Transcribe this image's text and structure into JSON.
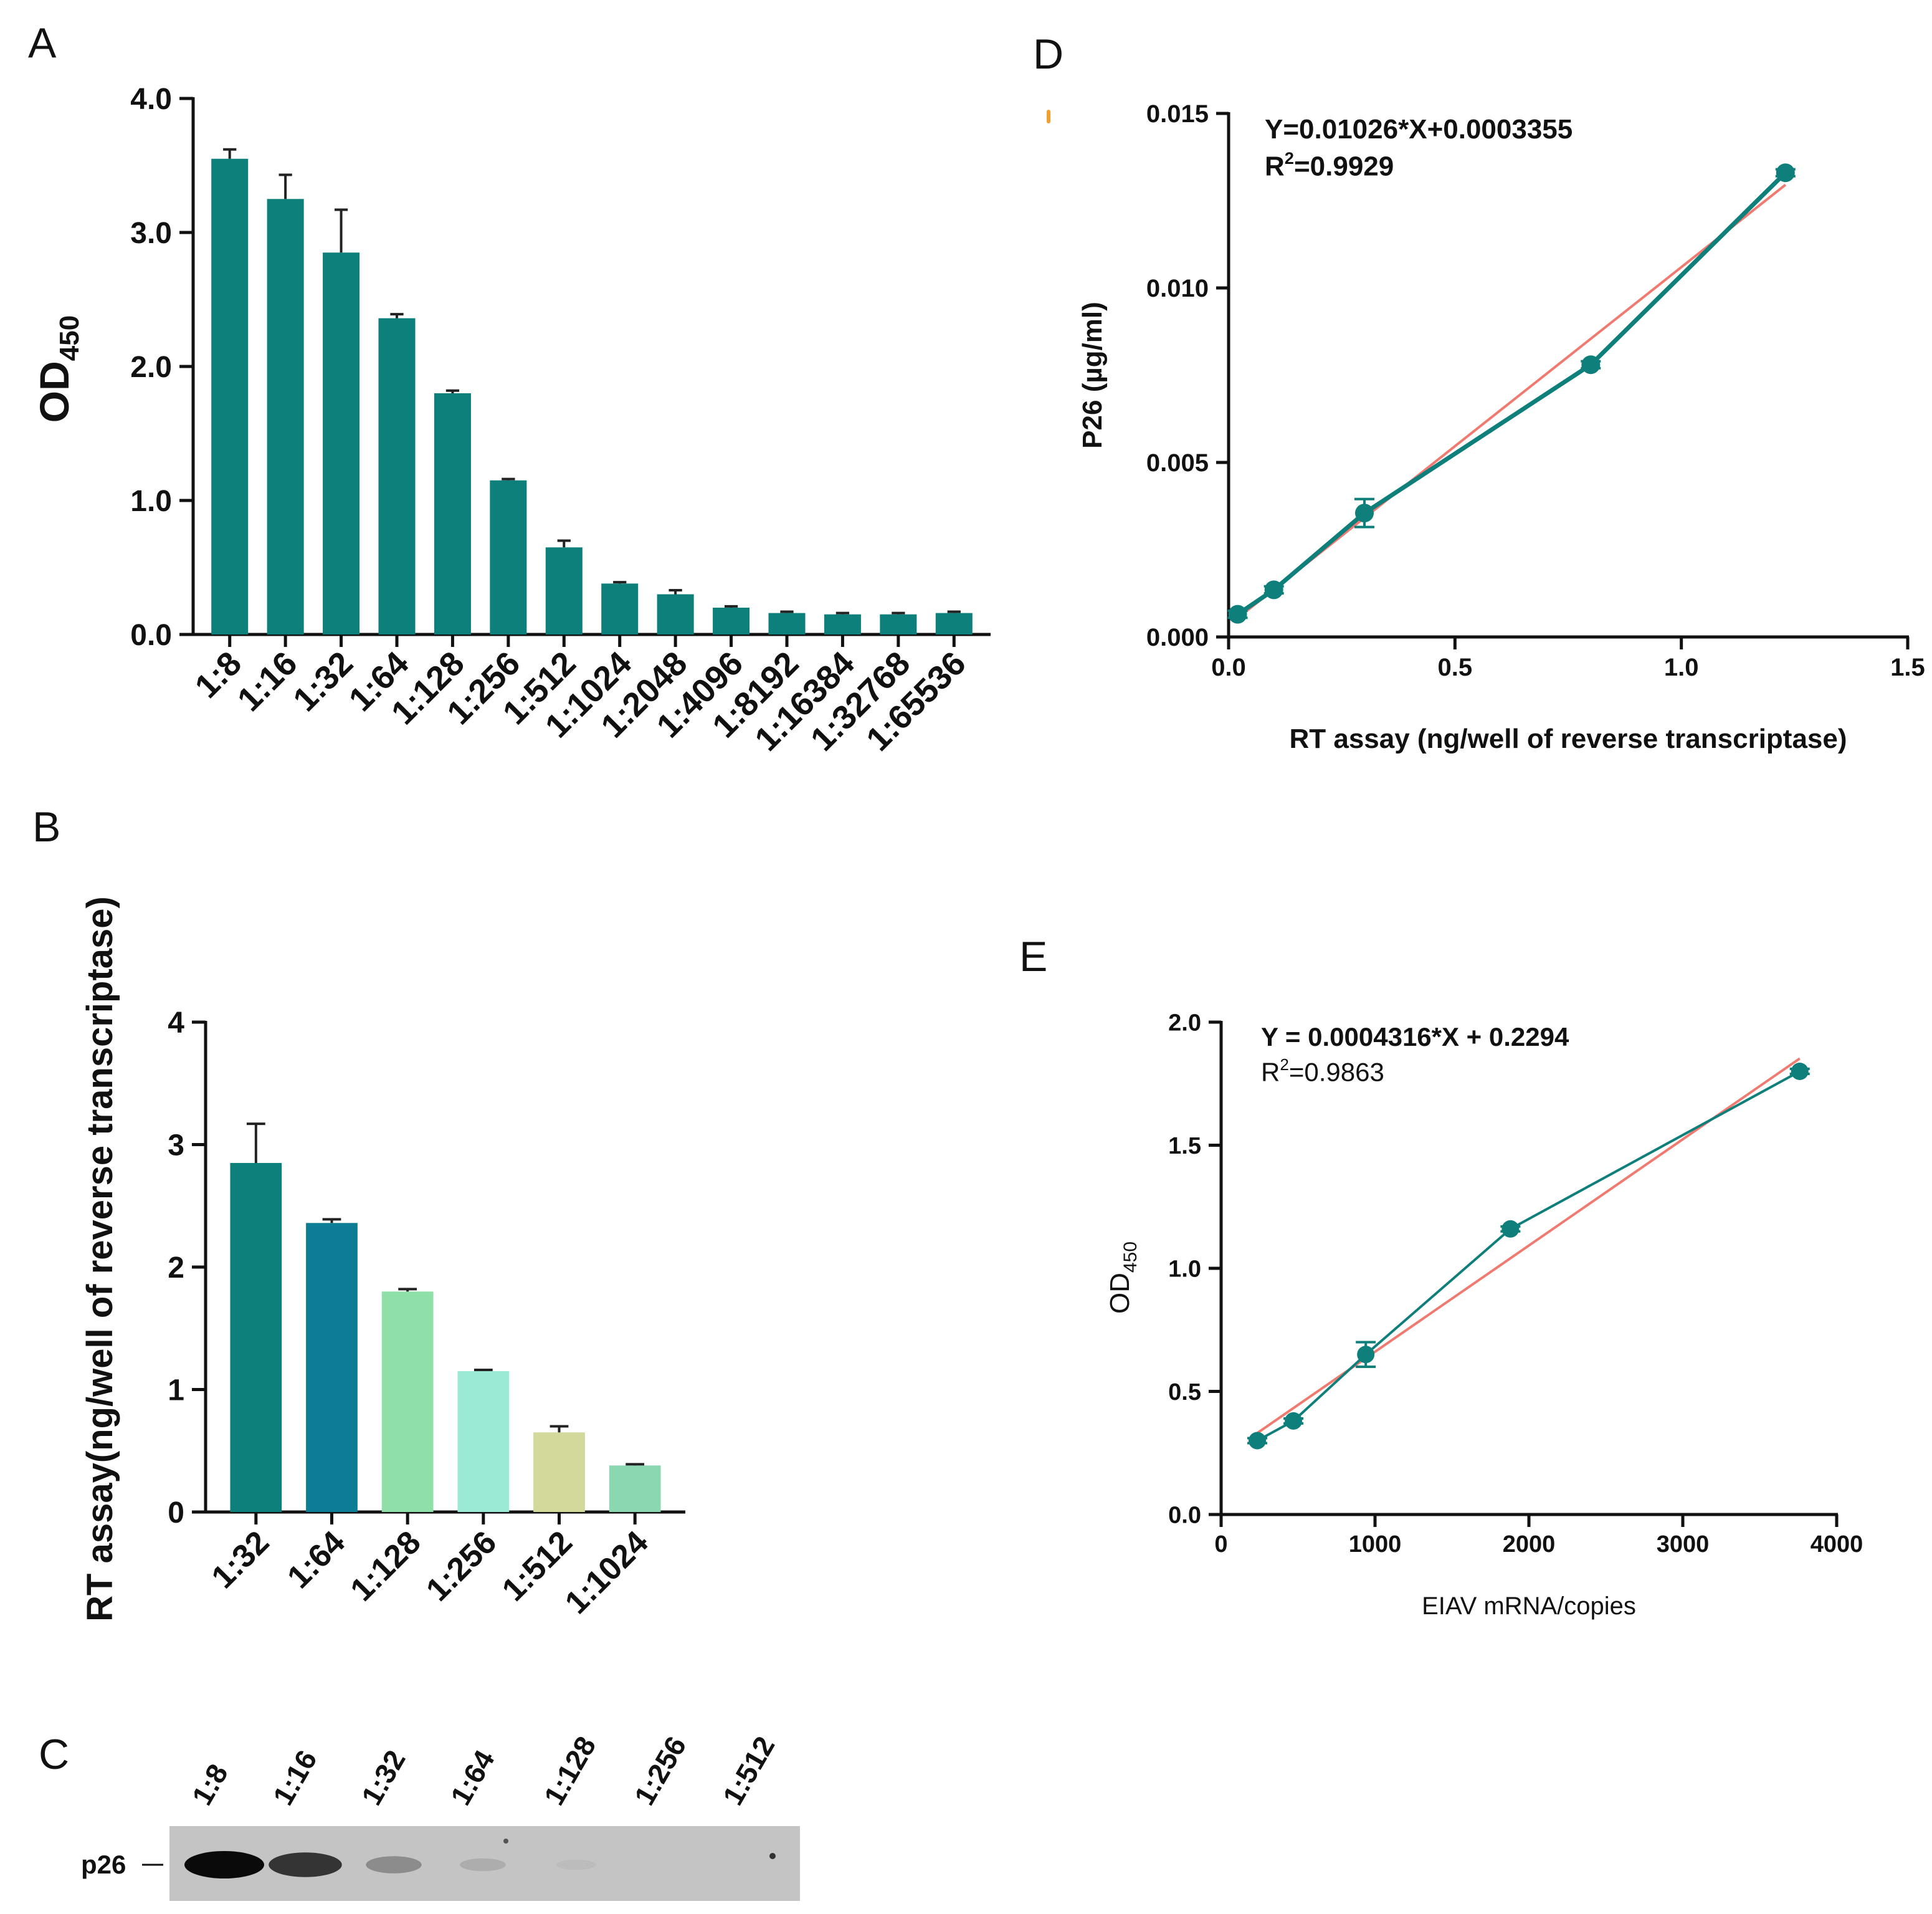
{
  "colors": {
    "teal": "#0d807b",
    "teal_dark": "#0e7f7a",
    "blue": "#0d7d96",
    "light_green": "#8fdfa8",
    "mint": "#9aead6",
    "khaki": "#d3d89b",
    "sea_green": "#8ad7b2",
    "fit_line": "#f07a70",
    "axis": "#111111",
    "accent_orange": "#f0a030"
  },
  "chart_data": [
    {
      "panel": "A",
      "type": "bar",
      "ylabel_main": "OD",
      "ylabel_sub": "450",
      "ylim": [
        0,
        4.0
      ],
      "yticks": [
        "0.0",
        "1.0",
        "2.0",
        "3.0",
        "4.0"
      ],
      "categories": [
        "1:8",
        "1:16",
        "1:32",
        "1:64",
        "1:128",
        "1:256",
        "1:512",
        "1:1024",
        "1:2048",
        "1:4096",
        "1:8192",
        "1:16384",
        "1:32768",
        "1:65536"
      ],
      "values": [
        3.55,
        3.25,
        2.85,
        2.36,
        1.8,
        1.15,
        0.65,
        0.38,
        0.3,
        0.2,
        0.16,
        0.15,
        0.15,
        0.16
      ],
      "errors": [
        0.07,
        0.18,
        0.32,
        0.03,
        0.02,
        0.01,
        0.05,
        0.01,
        0.03,
        0.01,
        0.01,
        0.01,
        0.01,
        0.01
      ]
    },
    {
      "panel": "B",
      "type": "bar",
      "ylabel": "RT assay(ng/well of reverse transcriptase)",
      "ylim": [
        0,
        4
      ],
      "yticks": [
        "0",
        "1",
        "2",
        "3",
        "4"
      ],
      "categories": [
        "1:32",
        "1:64",
        "1:128",
        "1:256",
        "1:512",
        "1:1024"
      ],
      "values": [
        2.85,
        2.36,
        1.8,
        1.15,
        0.65,
        0.38
      ],
      "errors": [
        0.32,
        0.03,
        0.02,
        0.01,
        0.05,
        0.01
      ],
      "bar_colors": [
        "#0d807b",
        "#0d7d96",
        "#8fdfa8",
        "#9aead6",
        "#d3d89b",
        "#8ad7b2"
      ]
    },
    {
      "panel": "D",
      "type": "scatter",
      "equation": "Y=0.01026*X+0.0003355",
      "r2_label": "R",
      "r2_sup": "2",
      "r2_value": "=0.9929",
      "xlabel": "RT assay (ng/well of reverse transcriptase)",
      "ylabel": "P26 (µg/ml)",
      "xlim": [
        0,
        1.5
      ],
      "ylim": [
        0,
        0.015
      ],
      "xticks": [
        "0.0",
        "0.5",
        "1.0",
        "1.5"
      ],
      "yticks": [
        "0.000",
        "0.005",
        "0.010",
        "0.015"
      ],
      "x": [
        0.02,
        0.1,
        0.3,
        0.8,
        1.23
      ],
      "y": [
        0.00065,
        0.00135,
        0.00355,
        0.0078,
        0.0133
      ],
      "errors": [
        0.0001,
        0.0001,
        0.0004,
        0.0001,
        0.0001
      ],
      "fit": {
        "slope": 0.01026,
        "intercept": 0.0003355,
        "x_range": [
          0.02,
          1.23
        ]
      }
    },
    {
      "panel": "E",
      "type": "scatter",
      "equation": "Y = 0.0004316*X + 0.2294",
      "r2_label": "R",
      "r2_sup": "2",
      "r2_value": "=0.9863",
      "xlabel": "EIAV mRNA/copies",
      "ylabel_main": "OD",
      "ylabel_sub": "450",
      "xlim": [
        0,
        4000
      ],
      "ylim": [
        0,
        2.0
      ],
      "xticks": [
        "0",
        "1000",
        "2000",
        "3000",
        "4000"
      ],
      "yticks": [
        "0.0",
        "0.5",
        "1.0",
        "1.5",
        "2.0"
      ],
      "x": [
        235,
        470,
        940,
        1880,
        3760
      ],
      "y": [
        0.3,
        0.38,
        0.65,
        1.16,
        1.8
      ],
      "errors": [
        0.01,
        0.01,
        0.05,
        0.01,
        0.01
      ],
      "fit": {
        "slope": 0.0004316,
        "intercept": 0.2294,
        "x_range": [
          235,
          3760
        ]
      }
    }
  ],
  "blot": {
    "panel": "C",
    "lanes": [
      "1:8",
      "1:16",
      "1:32",
      "1:64",
      "1:128",
      "1:256",
      "1:512"
    ],
    "band_label": "p26",
    "band_intensity": [
      1.0,
      0.85,
      0.45,
      0.22,
      0.08,
      0.0,
      0.0
    ]
  },
  "panel_labels": {
    "A": "A",
    "B": "B",
    "C": "C",
    "D": "D",
    "E": "E"
  }
}
